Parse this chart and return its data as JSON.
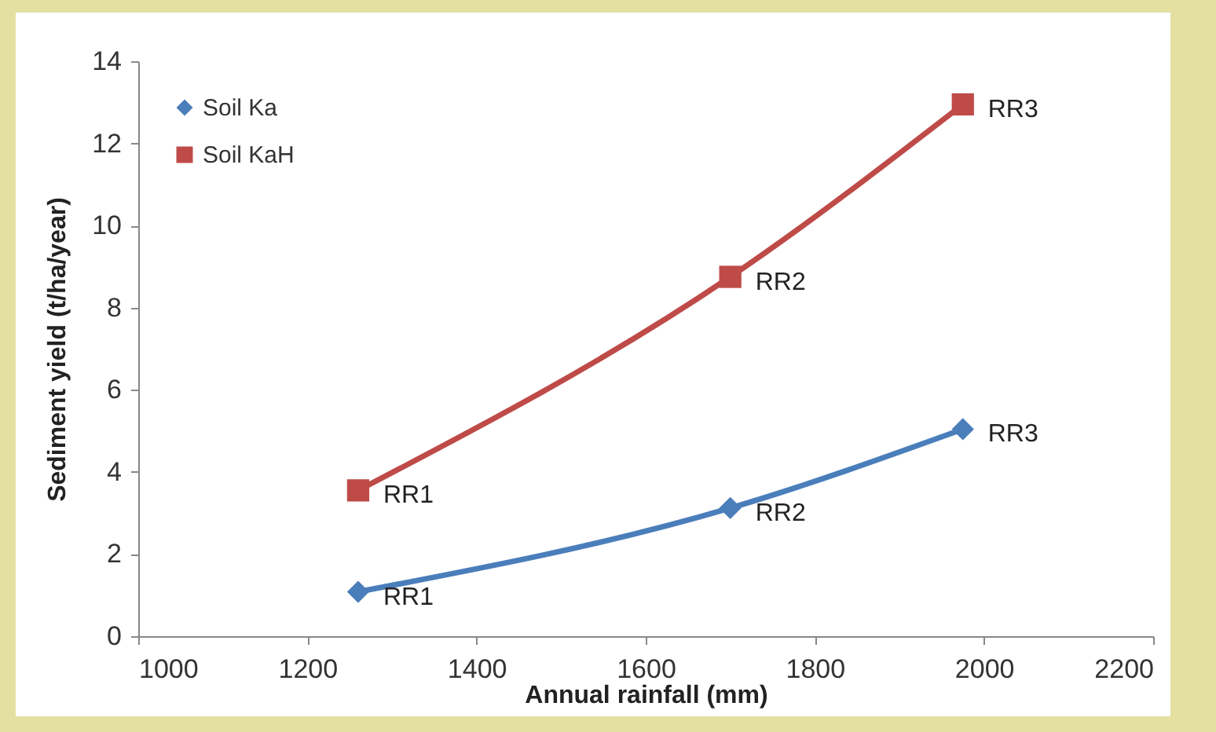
{
  "chart_data": {
    "type": "line",
    "xlabel": "Annual rainfall (mm)",
    "ylabel": "Sediment yield (t/ha/year)",
    "x": [
      1260,
      1700,
      1975
    ],
    "series": [
      {
        "name": "Soil Ka",
        "color": "#4a7ebb",
        "values": [
          1.08,
          3.12,
          5.04
        ],
        "marker": "diamond"
      },
      {
        "name": "Soil KaH",
        "color": "#be4b48",
        "values": [
          3.55,
          8.75,
          12.95
        ],
        "marker": "square"
      }
    ],
    "xlim": [
      1000,
      2200
    ],
    "xticks": [
      1000,
      1200,
      1400,
      1600,
      1800,
      2000,
      2200
    ],
    "ylim": [
      0,
      14
    ],
    "yticks": [
      0,
      2,
      4,
      6,
      8,
      10,
      12,
      14
    ],
    "grid": false,
    "legend": "top left",
    "annotations": [
      {
        "text": "RR1",
        "x": 1260,
        "y": 1.08
      },
      {
        "text": "RR2",
        "x": 1700,
        "y": 3.12
      },
      {
        "text": "RR3",
        "x": 1975,
        "y": 5.04
      },
      {
        "text": "RR1",
        "x": 1260,
        "y": 3.55
      },
      {
        "text": "RR2",
        "x": 1700,
        "y": 8.75
      },
      {
        "text": "RR3",
        "x": 1975,
        "y": 12.95
      }
    ]
  }
}
